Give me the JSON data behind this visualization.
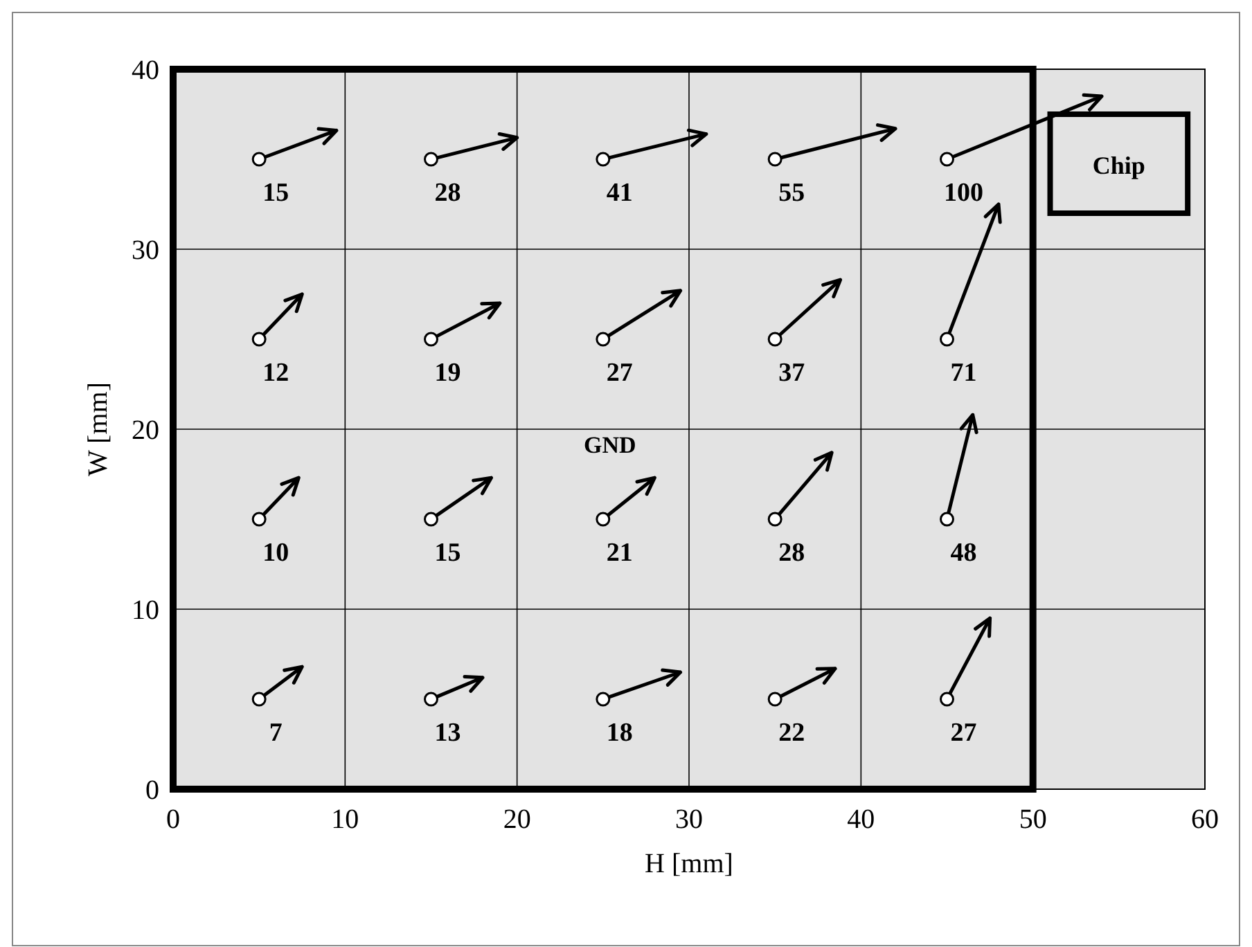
{
  "chart_data": {
    "type": "scatter",
    "xlabel": "H [mm]",
    "ylabel": "W [mm]",
    "xlim": [
      0,
      60
    ],
    "ylim": [
      0,
      40
    ],
    "xticks": [
      0,
      10,
      20,
      30,
      40,
      50,
      60
    ],
    "yticks": [
      0,
      10,
      20,
      30,
      40
    ],
    "grid": true,
    "annotations": [
      "GND",
      "Chip",
      {
        "text": "15",
        "x": 5,
        "y": 35
      },
      {
        "text": "28",
        "x": 15,
        "y": 35
      },
      {
        "text": "41",
        "x": 25,
        "y": 35
      },
      {
        "text": "55",
        "x": 35,
        "y": 35
      },
      {
        "text": "100",
        "x": 45,
        "y": 35
      },
      {
        "text": "12",
        "x": 5,
        "y": 25
      },
      {
        "text": "19",
        "x": 15,
        "y": 25
      },
      {
        "text": "27",
        "x": 25,
        "y": 25
      },
      {
        "text": "37",
        "x": 35,
        "y": 25
      },
      {
        "text": "71",
        "x": 45,
        "y": 25
      },
      {
        "text": "10",
        "x": 5,
        "y": 15
      },
      {
        "text": "15",
        "x": 15,
        "y": 15
      },
      {
        "text": "21",
        "x": 25,
        "y": 15
      },
      {
        "text": "28",
        "x": 35,
        "y": 15
      },
      {
        "text": "48",
        "x": 45,
        "y": 15
      },
      {
        "text": "7",
        "x": 5,
        "y": 5
      },
      {
        "text": "13",
        "x": 15,
        "y": 5
      },
      {
        "text": "18",
        "x": 25,
        "y": 5
      },
      {
        "text": "22",
        "x": 35,
        "y": 5
      },
      {
        "text": "27",
        "x": 45,
        "y": 5
      }
    ],
    "series": [
      {
        "color": "#000000",
        "marker": "circle",
        "x": [
          5,
          15,
          25,
          35,
          45,
          5,
          15,
          25,
          35,
          45,
          5,
          15,
          25,
          35,
          45,
          5,
          15,
          25,
          35,
          45
        ],
        "values": [
          35,
          35,
          35,
          35,
          35,
          25,
          25,
          25,
          25,
          25,
          15,
          15,
          15,
          15,
          15,
          5,
          5,
          5,
          5,
          5
        ]
      }
    ]
  }
}
